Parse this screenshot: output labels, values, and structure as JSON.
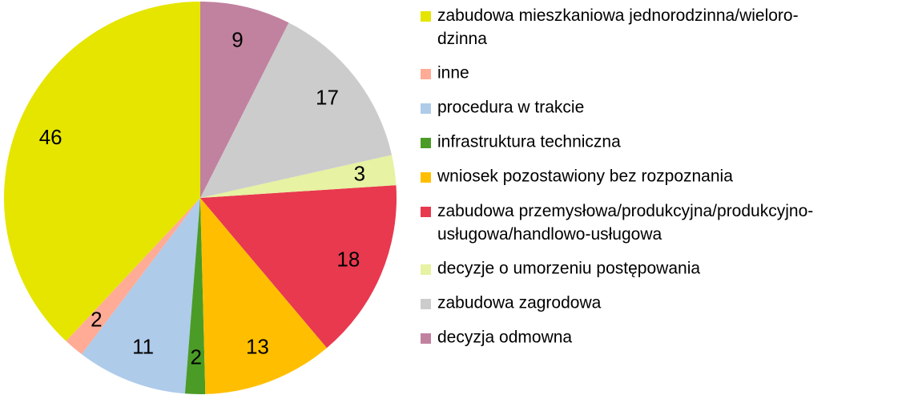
{
  "chart_data": {
    "type": "pie",
    "categories": [
      "zabudowa mieszkaniowa jednorodzinna/wieloro-\ndzinna",
      "inne",
      "procedura w trakcie",
      "infrastruktura techniczna",
      "wniosek pozostawiony bez rozpoznania",
      "zabudowa przemysłowa/produkcyjna/produkcyjno-\nusługowa/handlowo-usługowa",
      "decyzje o umorzeniu postępowania",
      "zabudowa zagrodowa",
      "decyzja odmowna"
    ],
    "values": [
      46,
      2,
      11,
      2,
      13,
      18,
      3,
      17,
      9
    ],
    "colors": [
      "#e5e500",
      "#ffab96",
      "#aecbea",
      "#4b9b27",
      "#ffbf00",
      "#e8394f",
      "#e7f2a2",
      "#cccccc",
      "#c0829f"
    ],
    "direction": "counterclockwise",
    "legend": "right"
  }
}
